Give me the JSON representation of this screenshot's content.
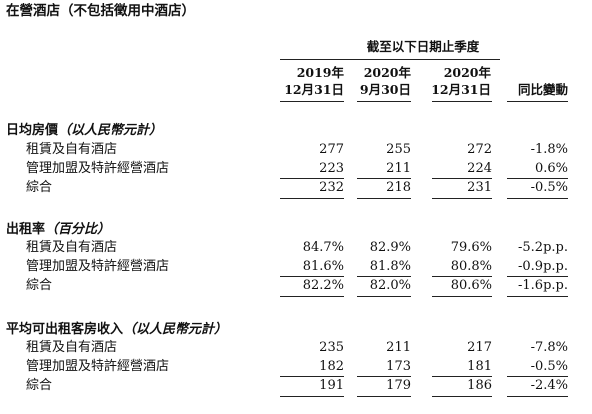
{
  "title": "在營酒店（不包括徵用中酒店）",
  "header": {
    "group_label": "截至以下日期止季度",
    "columns": [
      {
        "line1": "2019年",
        "line2": "12月31日"
      },
      {
        "line1": "2020年",
        "line2": "9月30日"
      },
      {
        "line1": "2020年",
        "line2": "12月31日"
      },
      {
        "line1": "",
        "line2": "同比變動"
      }
    ]
  },
  "sections": [
    {
      "title": "日均房價",
      "unit": "（以人民幣元計）",
      "rows": [
        {
          "label": "租賃及自有酒店",
          "values": [
            "277",
            "255",
            "272",
            "-1.8%"
          ]
        },
        {
          "label": "管理加盟及特許經營酒店",
          "values": [
            "223",
            "211",
            "224",
            "0.6%"
          ]
        },
        {
          "label": "綜合",
          "values": [
            "232",
            "218",
            "231",
            "-0.5%"
          ]
        }
      ]
    },
    {
      "title": "出租率",
      "unit": "（百分比）",
      "rows": [
        {
          "label": "租賃及自有酒店",
          "values": [
            "84.7%",
            "82.9%",
            "79.6%",
            "-5.2p.p."
          ]
        },
        {
          "label": "管理加盟及特許經營酒店",
          "values": [
            "81.6%",
            "81.8%",
            "80.8%",
            "-0.9p.p."
          ]
        },
        {
          "label": "綜合",
          "values": [
            "82.2%",
            "82.0%",
            "80.6%",
            "-1.6p.p."
          ]
        }
      ]
    },
    {
      "title": "平均可出租客房收入",
      "unit": "（以人民幣元計）",
      "rows": [
        {
          "label": "租賃及自有酒店",
          "values": [
            "235",
            "211",
            "217",
            "-7.8%"
          ]
        },
        {
          "label": "管理加盟及特許經營酒店",
          "values": [
            "182",
            "173",
            "181",
            "-0.5%"
          ]
        },
        {
          "label": "綜合",
          "values": [
            "191",
            "179",
            "186",
            "-2.4%"
          ]
        }
      ]
    }
  ]
}
